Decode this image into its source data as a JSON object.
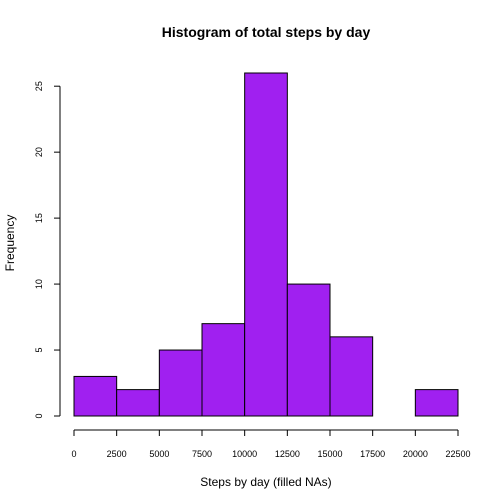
{
  "chart_data": {
    "type": "bar",
    "title": "Histogram of total steps by day",
    "xlabel": "Steps by day (filled NAs)",
    "ylabel": "Frequency",
    "bin_width": 2500,
    "bins": [
      {
        "start": 0,
        "end": 2500,
        "count": 3
      },
      {
        "start": 2500,
        "end": 5000,
        "count": 2
      },
      {
        "start": 5000,
        "end": 7500,
        "count": 5
      },
      {
        "start": 7500,
        "end": 10000,
        "count": 7
      },
      {
        "start": 10000,
        "end": 12500,
        "count": 26
      },
      {
        "start": 12500,
        "end": 15000,
        "count": 10
      },
      {
        "start": 15000,
        "end": 17500,
        "count": 6
      },
      {
        "start": 17500,
        "end": 20000,
        "count": 0
      },
      {
        "start": 20000,
        "end": 22500,
        "count": 2
      }
    ],
    "xlim": [
      0,
      22500
    ],
    "ylim": [
      0,
      26
    ],
    "x_ticks": [
      0,
      2500,
      5000,
      7500,
      10000,
      12500,
      15000,
      17500,
      20000,
      22500
    ],
    "y_ticks": [
      0,
      5,
      10,
      15,
      20,
      25
    ],
    "bar_color": "#a020f0",
    "grid": false
  }
}
